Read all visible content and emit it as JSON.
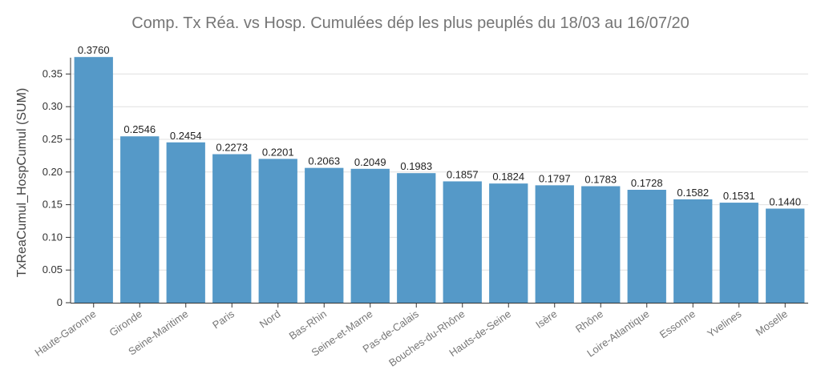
{
  "chart_data": {
    "type": "bar",
    "title": "Comp. Tx Réa. vs Hosp. Cumulées dép les plus peuplés du 18/03 au 16/07/20",
    "xlabel": "",
    "ylabel": "TxReaCumul_HospCumul (SUM)",
    "ylim": [
      0,
      0.375
    ],
    "yticks": [
      0,
      0.05,
      0.1,
      0.15,
      0.2,
      0.25,
      0.3,
      0.35
    ],
    "ytick_labels": [
      "0",
      "0.05",
      "0.10",
      "0.15",
      "0.20",
      "0.25",
      "0.30",
      "0.35"
    ],
    "grid": true,
    "bar_color": "#5599c8",
    "categories": [
      "Haute-Garonne",
      "Gironde",
      "Seine-Maritime",
      "Paris",
      "Nord",
      "Bas-Rhin",
      "Seine-et-Marne",
      "Pas-de-Calais",
      "Bouches-du-Rhône",
      "Hauts-de-Seine",
      "Isère",
      "Rhône",
      "Loire-Atlantique",
      "Essonne",
      "Yvelines",
      "Moselle"
    ],
    "values": [
      0.376,
      0.2546,
      0.2454,
      0.2273,
      0.2201,
      0.2063,
      0.2049,
      0.1983,
      0.1857,
      0.1824,
      0.1797,
      0.1783,
      0.1728,
      0.1582,
      0.1531,
      0.144
    ],
    "value_labels": [
      "0.3760",
      "0.2546",
      "0.2454",
      "0.2273",
      "0.2201",
      "0.2063",
      "0.2049",
      "0.1983",
      "0.1857",
      "0.1824",
      "0.1797",
      "0.1783",
      "0.1728",
      "0.1582",
      "0.1531",
      "0.1440"
    ]
  }
}
